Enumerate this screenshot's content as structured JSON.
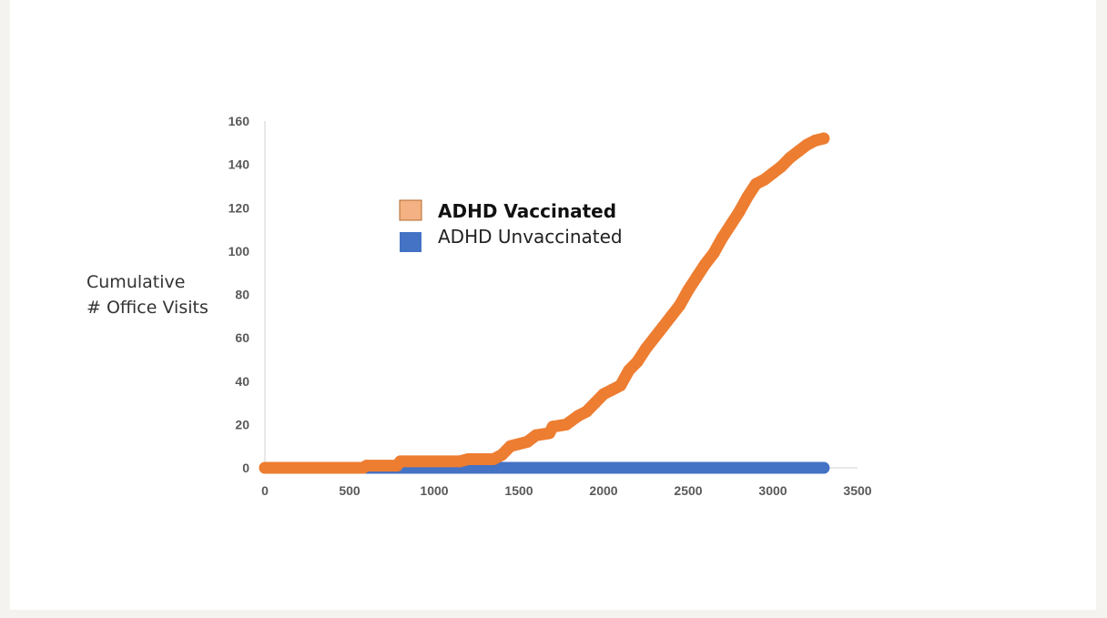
{
  "chart_data": {
    "type": "scatter",
    "title": "",
    "ylabel_lines": [
      "Cumulative",
      "# Office Visits"
    ],
    "xlabel": "",
    "xlim": [
      0,
      3500
    ],
    "ylim": [
      0,
      160
    ],
    "xticks": [
      0,
      500,
      1000,
      1500,
      2000,
      2500,
      3000,
      3500
    ],
    "yticks": [
      0,
      20,
      40,
      60,
      80,
      100,
      120,
      140,
      160
    ],
    "grid": false,
    "legend_position": "top-left",
    "series": [
      {
        "name": "ADHD Vaccinated",
        "color": "#ed7d31",
        "legend_color": "#f4b183",
        "points": [
          [
            0,
            0
          ],
          [
            300,
            0
          ],
          [
            580,
            0
          ],
          [
            600,
            1
          ],
          [
            780,
            1
          ],
          [
            800,
            3
          ],
          [
            1150,
            3
          ],
          [
            1200,
            4
          ],
          [
            1350,
            4
          ],
          [
            1400,
            6
          ],
          [
            1450,
            10
          ],
          [
            1550,
            12
          ],
          [
            1600,
            15
          ],
          [
            1680,
            16
          ],
          [
            1700,
            19
          ],
          [
            1780,
            20
          ],
          [
            1850,
            24
          ],
          [
            1900,
            26
          ],
          [
            1950,
            30
          ],
          [
            2000,
            34
          ],
          [
            2050,
            36
          ],
          [
            2100,
            38
          ],
          [
            2150,
            45
          ],
          [
            2200,
            49
          ],
          [
            2250,
            55
          ],
          [
            2300,
            60
          ],
          [
            2350,
            65
          ],
          [
            2400,
            70
          ],
          [
            2450,
            75
          ],
          [
            2500,
            82
          ],
          [
            2550,
            88
          ],
          [
            2600,
            94
          ],
          [
            2650,
            99
          ],
          [
            2700,
            106
          ],
          [
            2750,
            112
          ],
          [
            2800,
            118
          ],
          [
            2850,
            125
          ],
          [
            2900,
            131
          ],
          [
            2950,
            133
          ],
          [
            3000,
            136
          ],
          [
            3050,
            139
          ],
          [
            3100,
            143
          ],
          [
            3150,
            146
          ],
          [
            3200,
            149
          ],
          [
            3250,
            151
          ],
          [
            3300,
            152
          ]
        ]
      },
      {
        "name": "ADHD Unvaccinated",
        "color": "#4472c4",
        "legend_color": "#4472c4",
        "points": [
          [
            600,
            0
          ],
          [
            1000,
            0
          ],
          [
            2000,
            0
          ],
          [
            3300,
            0
          ]
        ]
      }
    ]
  }
}
